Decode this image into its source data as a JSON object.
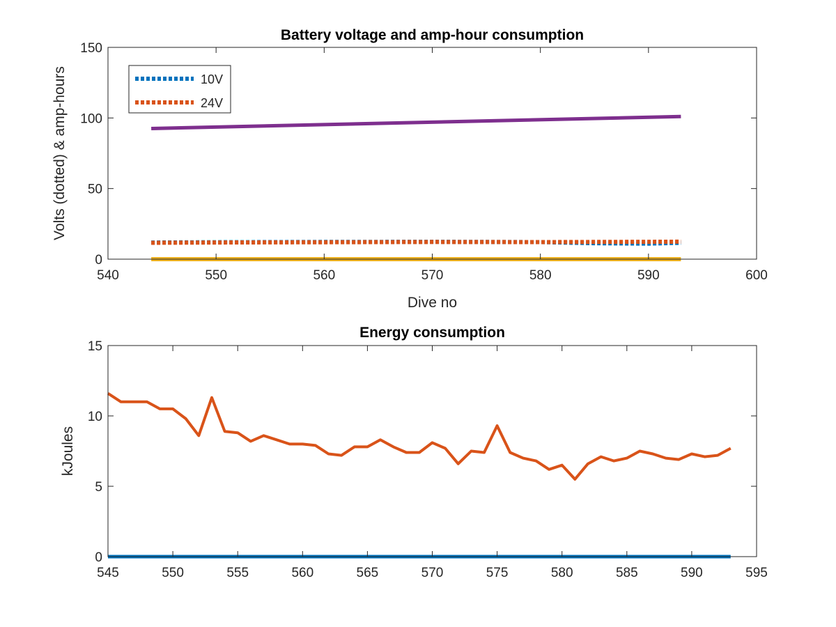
{
  "chart_data": [
    {
      "type": "line",
      "title": "Battery voltage and amp-hour consumption",
      "xlabel": "Dive no",
      "ylabel": "Volts (dotted) & amp-hours",
      "xlim": [
        540,
        600
      ],
      "ylim": [
        0,
        150
      ],
      "xticks": [
        540,
        550,
        560,
        570,
        580,
        590,
        600
      ],
      "yticks": [
        0,
        50,
        100,
        150
      ],
      "grid": false,
      "legend": {
        "position": "top-left",
        "entries": [
          "10V",
          "24V"
        ]
      },
      "series": [
        {
          "name": "10V",
          "style": "dotted",
          "color": "#0072BD",
          "x": [
            544,
            550,
            560,
            570,
            580,
            585,
            590,
            593
          ],
          "y": [
            11.8,
            12.0,
            12.2,
            12.3,
            12.1,
            11.3,
            11.0,
            11.6
          ]
        },
        {
          "name": "24V",
          "style": "dotted",
          "color": "#D95319",
          "x": [
            544,
            550,
            560,
            570,
            580,
            590,
            593
          ],
          "y": [
            11.6,
            11.8,
            12.0,
            12.2,
            12.1,
            12.3,
            12.4
          ]
        },
        {
          "style": "solid",
          "color": "#7E2F8E",
          "x": [
            544,
            593
          ],
          "y": [
            92.5,
            101.0
          ]
        },
        {
          "style": "solid",
          "color": "#EDB120",
          "x": [
            544,
            593
          ],
          "y": [
            0,
            0
          ]
        }
      ]
    },
    {
      "type": "line",
      "title": "Energy consumption",
      "xlabel": "",
      "ylabel": "kJoules",
      "xlim": [
        545,
        595
      ],
      "ylim": [
        0,
        15
      ],
      "xticks": [
        545,
        550,
        555,
        560,
        565,
        570,
        575,
        580,
        585,
        590,
        595
      ],
      "yticks": [
        0,
        5,
        10,
        15
      ],
      "grid": false,
      "series": [
        {
          "style": "solid",
          "color": "#D95319",
          "x": [
            545,
            546,
            547,
            548,
            549,
            550,
            551,
            552,
            553,
            554,
            555,
            556,
            557,
            558,
            559,
            560,
            561,
            562,
            563,
            564,
            565,
            566,
            567,
            568,
            569,
            570,
            571,
            572,
            573,
            574,
            575,
            576,
            577,
            578,
            579,
            580,
            581,
            582,
            583,
            584,
            585,
            586,
            587,
            588,
            589,
            590,
            591,
            592,
            593
          ],
          "y": [
            11.6,
            11.0,
            11.0,
            11.0,
            10.5,
            10.5,
            9.8,
            8.6,
            11.3,
            8.9,
            8.8,
            8.2,
            8.6,
            8.3,
            8.0,
            8.0,
            7.9,
            7.3,
            7.2,
            7.8,
            7.8,
            8.3,
            7.8,
            7.4,
            7.4,
            8.1,
            7.7,
            6.6,
            7.5,
            7.4,
            9.3,
            7.4,
            7.0,
            6.8,
            6.2,
            6.5,
            5.5,
            6.6,
            7.1,
            6.8,
            7.0,
            7.5,
            7.3,
            7.0,
            6.9,
            7.3,
            7.1,
            7.2,
            7.7
          ]
        },
        {
          "style": "solid",
          "color": "#0072BD",
          "x": [
            545,
            593
          ],
          "y": [
            0,
            0
          ]
        }
      ]
    }
  ]
}
